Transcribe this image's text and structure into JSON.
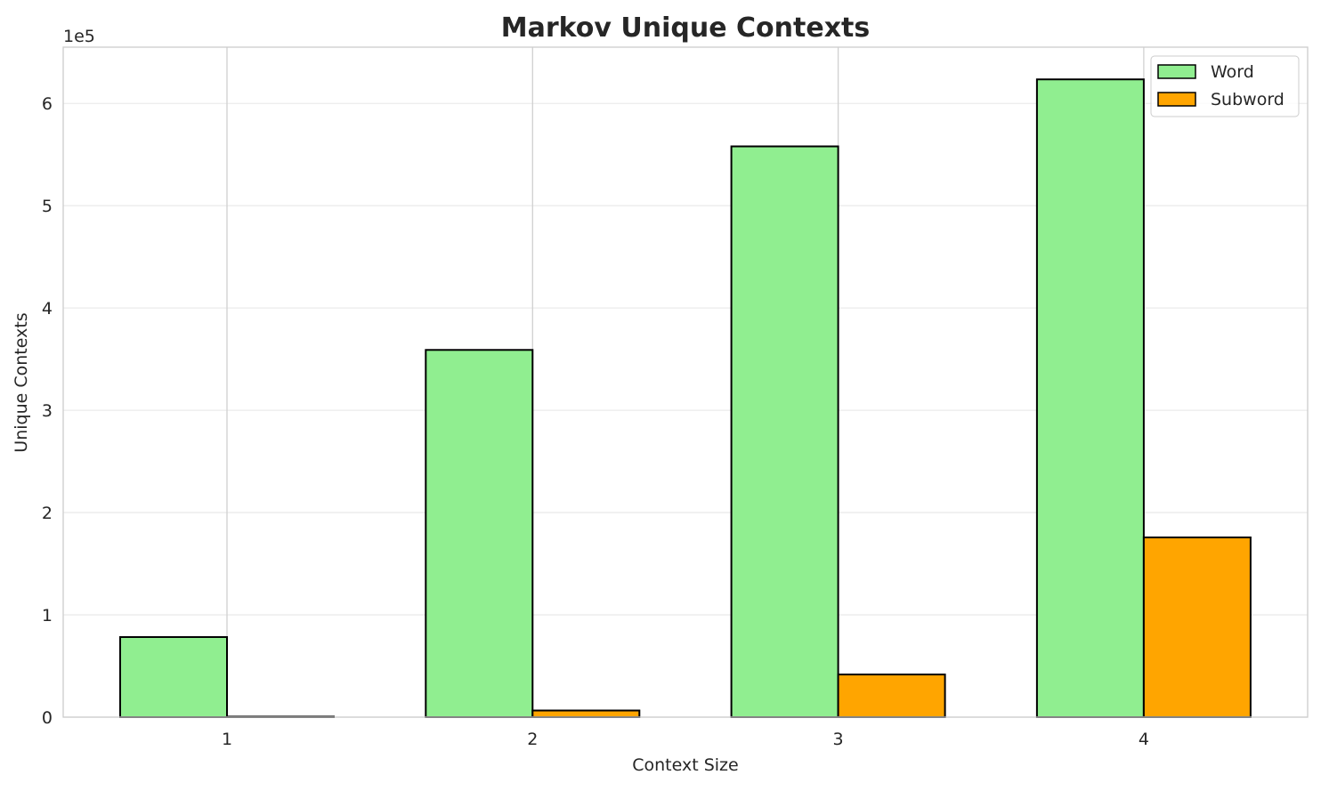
{
  "chart_data": {
    "type": "bar",
    "title": "Markov Unique Contexts",
    "xlabel": "Context Size",
    "ylabel": "Unique Contexts",
    "y_offset_label": "1e5",
    "categories": [
      "1",
      "2",
      "3",
      "4"
    ],
    "series": [
      {
        "name": "Word",
        "color": "#90ee90",
        "values": [
          78300,
          359000,
          558000,
          623500
        ]
      },
      {
        "name": "Subword",
        "color": "#ffa500",
        "values": [
          500,
          6500,
          41700,
          175700
        ]
      }
    ],
    "yticks": [
      0,
      100000,
      200000,
      300000,
      400000,
      500000,
      600000
    ],
    "ytick_labels": [
      "0",
      "1",
      "2",
      "3",
      "4",
      "5",
      "6"
    ],
    "ylim": [
      0,
      655000
    ],
    "grid": true,
    "legend": "top-right"
  }
}
